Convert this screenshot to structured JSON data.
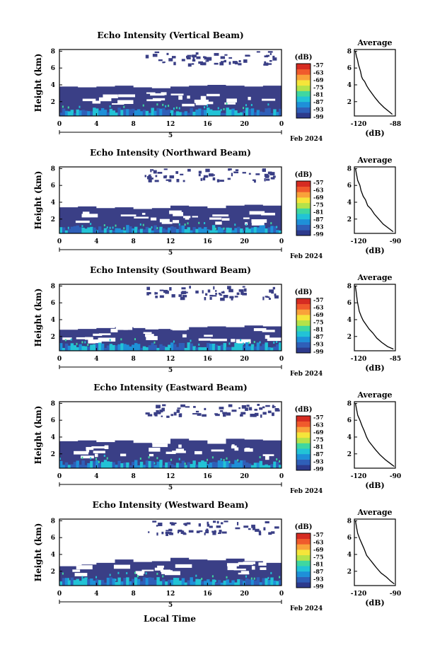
{
  "figure": {
    "xlabel_bottom": "Local Time",
    "date_label": "Feb 2024",
    "day_label": "5",
    "colorbar_unit": "(dB)",
    "colorbar_ticks": [
      "-57",
      "-63",
      "-69",
      "-75",
      "-81",
      "-87",
      "-93",
      "-99"
    ],
    "colors": {
      "echo_background": "#3a3f86",
      "colormap": [
        "#2d3a8c",
        "#2f5fb8",
        "#1e90d8",
        "#22c3d6",
        "#3fd7a0",
        "#b4e24a",
        "#f5e53a",
        "#f9a23a",
        "#f05a2c",
        "#d62c22"
      ]
    }
  },
  "chart_data": [
    {
      "type": "heatmap",
      "title": "Echo Intensity (Vertical Beam)",
      "ylabel": "Height (km)",
      "xlabel": "",
      "x_ticks": [
        "0",
        "4",
        "8",
        "12",
        "16",
        "20",
        "0"
      ],
      "y_ticks": [
        "2",
        "4",
        "6",
        "8"
      ],
      "xlim": [
        0,
        24
      ],
      "ylim": [
        0.3,
        8.2
      ],
      "echo_top_km": [
        3.8,
        3.7,
        3.8,
        3.9,
        3.7,
        3.6,
        3.8,
        3.9,
        4.0,
        3.9,
        3.8,
        3.9
      ],
      "average_profile": {
        "title": "Average",
        "xlabel": "(dB)",
        "x_ticks": [
          "-120",
          "-88"
        ],
        "y_ticks": [
          "2",
          "4",
          "6",
          "8"
        ],
        "xlim": [
          -125,
          -85
        ],
        "ylim": [
          0.3,
          8.2
        ],
        "points": [
          [
            -124,
            8.0
          ],
          [
            -123,
            7.4
          ],
          [
            -122,
            7.0
          ],
          [
            -121,
            6.4
          ],
          [
            -119,
            5.6
          ],
          [
            -118,
            5.0
          ],
          [
            -117,
            4.7
          ],
          [
            -115,
            4.4
          ],
          [
            -113,
            3.9
          ],
          [
            -111,
            3.5
          ],
          [
            -108,
            3.0
          ],
          [
            -105,
            2.5
          ],
          [
            -101,
            1.9
          ],
          [
            -96,
            1.3
          ],
          [
            -91,
            0.8
          ],
          [
            -88,
            0.5
          ]
        ]
      }
    },
    {
      "type": "heatmap",
      "title": "Echo Intensity (Northward Beam)",
      "ylabel": "Height (km)",
      "xlabel": "",
      "x_ticks": [
        "0",
        "4",
        "8",
        "12",
        "16",
        "20",
        "0"
      ],
      "y_ticks": [
        "2",
        "4",
        "6",
        "8"
      ],
      "xlim": [
        0,
        24
      ],
      "ylim": [
        0.3,
        8.2
      ],
      "echo_top_km": [
        3.4,
        3.5,
        3.3,
        3.4,
        3.2,
        3.3,
        3.6,
        3.5,
        3.3,
        3.6,
        3.7,
        3.6
      ],
      "average_profile": {
        "title": "Average",
        "xlabel": "(dB)",
        "x_ticks": [
          "-120",
          "-90"
        ],
        "y_ticks": [
          "2",
          "4",
          "6",
          "8"
        ],
        "xlim": [
          -125,
          -88
        ],
        "ylim": [
          0.3,
          8.2
        ],
        "points": [
          [
            -124,
            8.0
          ],
          [
            -123,
            7.3
          ],
          [
            -122,
            6.6
          ],
          [
            -120,
            6.0
          ],
          [
            -119,
            5.4
          ],
          [
            -117,
            4.7
          ],
          [
            -115,
            4.3
          ],
          [
            -113,
            3.6
          ],
          [
            -110,
            3.2
          ],
          [
            -107,
            2.6
          ],
          [
            -103,
            2.0
          ],
          [
            -99,
            1.4
          ],
          [
            -94,
            0.9
          ],
          [
            -90,
            0.5
          ]
        ]
      }
    },
    {
      "type": "heatmap",
      "title": "Echo Intensity (Southward Beam)",
      "ylabel": "Height (km)",
      "xlabel": "",
      "x_ticks": [
        "0",
        "4",
        "8",
        "12",
        "16",
        "20",
        "0"
      ],
      "y_ticks": [
        "2",
        "4",
        "6",
        "8"
      ],
      "xlim": [
        0,
        24
      ],
      "ylim": [
        0.3,
        8.2
      ],
      "echo_top_km": [
        2.8,
        2.9,
        3.0,
        3.1,
        3.0,
        2.9,
        2.8,
        3.1,
        3.2,
        3.1,
        3.3,
        3.2
      ],
      "average_profile": {
        "title": "Average",
        "xlabel": "(dB)",
        "x_ticks": [
          "-120",
          "-85"
        ],
        "y_ticks": [
          "2",
          "4",
          "6",
          "8"
        ],
        "xlim": [
          -125,
          -83
        ],
        "ylim": [
          0.3,
          8.2
        ],
        "points": [
          [
            -124,
            8.0
          ],
          [
            -123,
            7.2
          ],
          [
            -122,
            6.2
          ],
          [
            -121,
            5.6
          ],
          [
            -120,
            5.0
          ],
          [
            -118,
            4.4
          ],
          [
            -116,
            3.9
          ],
          [
            -113,
            3.4
          ],
          [
            -110,
            2.9
          ],
          [
            -106,
            2.4
          ],
          [
            -102,
            1.8
          ],
          [
            -97,
            1.3
          ],
          [
            -91,
            0.8
          ],
          [
            -85,
            0.5
          ]
        ]
      }
    },
    {
      "type": "heatmap",
      "title": "Echo Intensity (Eastward Beam)",
      "ylabel": "Height (km)",
      "xlabel": "",
      "x_ticks": [
        "0",
        "4",
        "8",
        "12",
        "16",
        "20",
        "0"
      ],
      "y_ticks": [
        "2",
        "4",
        "6",
        "8"
      ],
      "xlim": [
        0,
        24
      ],
      "ylim": [
        0.3,
        8.2
      ],
      "echo_top_km": [
        3.5,
        3.6,
        3.4,
        3.6,
        3.3,
        3.2,
        3.8,
        3.6,
        3.2,
        3.8,
        3.7,
        3.6
      ],
      "average_profile": {
        "title": "Average",
        "xlabel": "(dB)",
        "x_ticks": [
          "-120",
          "-90"
        ],
        "y_ticks": [
          "2",
          "4",
          "6",
          "8"
        ],
        "xlim": [
          -125,
          -88
        ],
        "ylim": [
          0.3,
          8.2
        ],
        "points": [
          [
            -124,
            8.0
          ],
          [
            -123,
            7.3
          ],
          [
            -122,
            6.6
          ],
          [
            -120,
            6.0
          ],
          [
            -118,
            5.3
          ],
          [
            -116,
            4.7
          ],
          [
            -114,
            4.0
          ],
          [
            -112,
            3.5
          ],
          [
            -109,
            3.0
          ],
          [
            -106,
            2.5
          ],
          [
            -102,
            1.9
          ],
          [
            -97,
            1.3
          ],
          [
            -92,
            0.8
          ],
          [
            -89,
            0.5
          ]
        ]
      }
    },
    {
      "type": "heatmap",
      "title": "Echo Intensity (Westward Beam)",
      "ylabel": "Height (km)",
      "xlabel": "Local Time",
      "x_ticks": [
        "0",
        "4",
        "8",
        "12",
        "16",
        "20",
        "0"
      ],
      "y_ticks": [
        "2",
        "4",
        "6",
        "8"
      ],
      "xlim": [
        0,
        24
      ],
      "ylim": [
        0.3,
        8.2
      ],
      "echo_top_km": [
        2.6,
        2.8,
        3.0,
        3.4,
        3.1,
        3.2,
        3.6,
        3.4,
        3.3,
        3.5,
        3.2,
        3.0
      ],
      "average_profile": {
        "title": "Average",
        "xlabel": "(dB)",
        "x_ticks": [
          "-120",
          "-90"
        ],
        "y_ticks": [
          "2",
          "4",
          "6",
          "8"
        ],
        "xlim": [
          -125,
          -88
        ],
        "ylim": [
          0.3,
          8.2
        ],
        "points": [
          [
            -124,
            8.0
          ],
          [
            -123,
            7.2
          ],
          [
            -122,
            6.5
          ],
          [
            -120,
            5.8
          ],
          [
            -118,
            5.2
          ],
          [
            -116,
            4.6
          ],
          [
            -114,
            3.9
          ],
          [
            -111,
            3.4
          ],
          [
            -108,
            2.9
          ],
          [
            -105,
            2.4
          ],
          [
            -101,
            1.8
          ],
          [
            -96,
            1.3
          ],
          [
            -92,
            0.8
          ],
          [
            -89,
            0.5
          ]
        ]
      }
    }
  ]
}
